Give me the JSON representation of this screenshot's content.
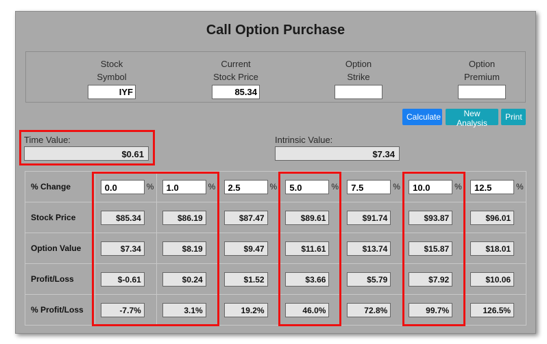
{
  "title": "Call Option Purchase",
  "fields": [
    {
      "label_line1": "Stock",
      "label_line2": "Symbol",
      "value": "IYF"
    },
    {
      "label_line1": "Current",
      "label_line2": "Stock Price",
      "value": "85.34"
    },
    {
      "label_line1": "Option",
      "label_line2": "Strike",
      "value": ""
    },
    {
      "label_line1": "Option",
      "label_line2": "Premium",
      "value": ""
    }
  ],
  "buttons": {
    "calculate": "Calculate",
    "new_analysis": "New Analysis",
    "print": "Print"
  },
  "time_value": {
    "label": "Time Value:",
    "value": "$0.61"
  },
  "intrinsic_value": {
    "label": "Intrinsic Value:",
    "value": "$7.34"
  },
  "table": {
    "pct_symbol": "%",
    "row_labels": [
      "% Change",
      "Stock Price",
      "Option Value",
      "Profit/Loss",
      "% Profit/Loss"
    ],
    "columns": [
      {
        "change": "0.0",
        "stock_price": "$85.34",
        "option_value": "$7.34",
        "profit_loss": "$-0.61",
        "pct_profit_loss": "-7.7%"
      },
      {
        "change": "1.0",
        "stock_price": "$86.19",
        "option_value": "$8.19",
        "profit_loss": "$0.24",
        "pct_profit_loss": "3.1%"
      },
      {
        "change": "2.5",
        "stock_price": "$87.47",
        "option_value": "$9.47",
        "profit_loss": "$1.52",
        "pct_profit_loss": "19.2%"
      },
      {
        "change": "5.0",
        "stock_price": "$89.61",
        "option_value": "$11.61",
        "profit_loss": "$3.66",
        "pct_profit_loss": "46.0%"
      },
      {
        "change": "7.5",
        "stock_price": "$91.74",
        "option_value": "$13.74",
        "profit_loss": "$5.79",
        "pct_profit_loss": "72.8%"
      },
      {
        "change": "10.0",
        "stock_price": "$93.87",
        "option_value": "$15.87",
        "profit_loss": "$7.92",
        "pct_profit_loss": "99.7%"
      },
      {
        "change": "12.5",
        "stock_price": "$96.01",
        "option_value": "$18.01",
        "profit_loss": "$10.06",
        "pct_profit_loss": "126.5%"
      }
    ]
  },
  "colors": {
    "highlight": "#ee1111",
    "calculate_button": "#1a7ff0",
    "teal_button": "#17a2b8",
    "panel": "#a9a9a9"
  }
}
